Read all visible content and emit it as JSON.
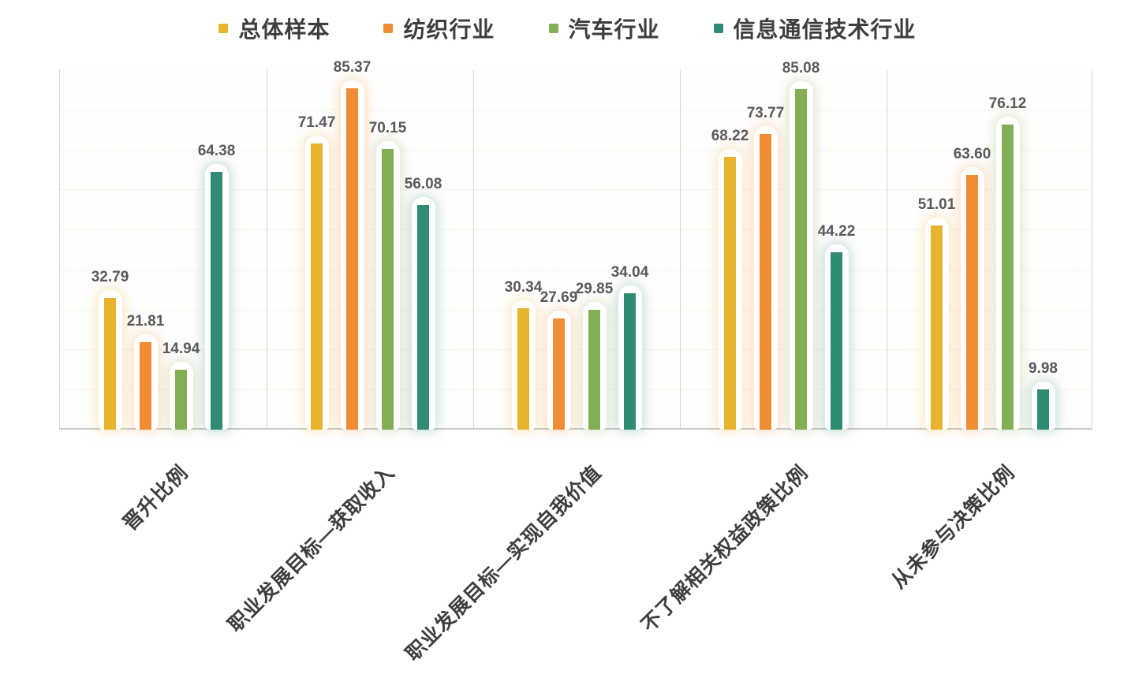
{
  "chart_data": {
    "type": "bar",
    "title": "",
    "xlabel": "",
    "ylabel": "",
    "ylim": [
      0,
      90
    ],
    "grid": "dotted-horizontal",
    "grid_interval": 10,
    "legend_position": "top",
    "value_label_decimals": 2,
    "categories": [
      "晋升比例",
      "职业发展目标—获取收入",
      "职业发展目标—实现自我价值",
      "不了解相关权益政策比例",
      "从未参与决策比例"
    ],
    "series": [
      {
        "name": "总体样本",
        "color": "#E8B42E",
        "values": [
          32.79,
          71.47,
          30.34,
          68.22,
          51.01
        ]
      },
      {
        "name": "纺织行业",
        "color": "#F08C33",
        "values": [
          21.81,
          85.37,
          27.69,
          73.77,
          63.6
        ]
      },
      {
        "name": "汽车行业",
        "color": "#84AE53",
        "values": [
          14.94,
          70.15,
          29.85,
          85.08,
          76.12
        ]
      },
      {
        "name": "信息通信技术行业",
        "color": "#2F8B74",
        "values": [
          64.38,
          56.08,
          34.04,
          44.22,
          9.98
        ]
      }
    ],
    "colors": {
      "value_label": "#595959",
      "axis_label": "#3d3d3d",
      "axis_line": "#c9c9c5",
      "divider_line": "#d5d5d1",
      "gridline": "#e9e9e4"
    }
  }
}
